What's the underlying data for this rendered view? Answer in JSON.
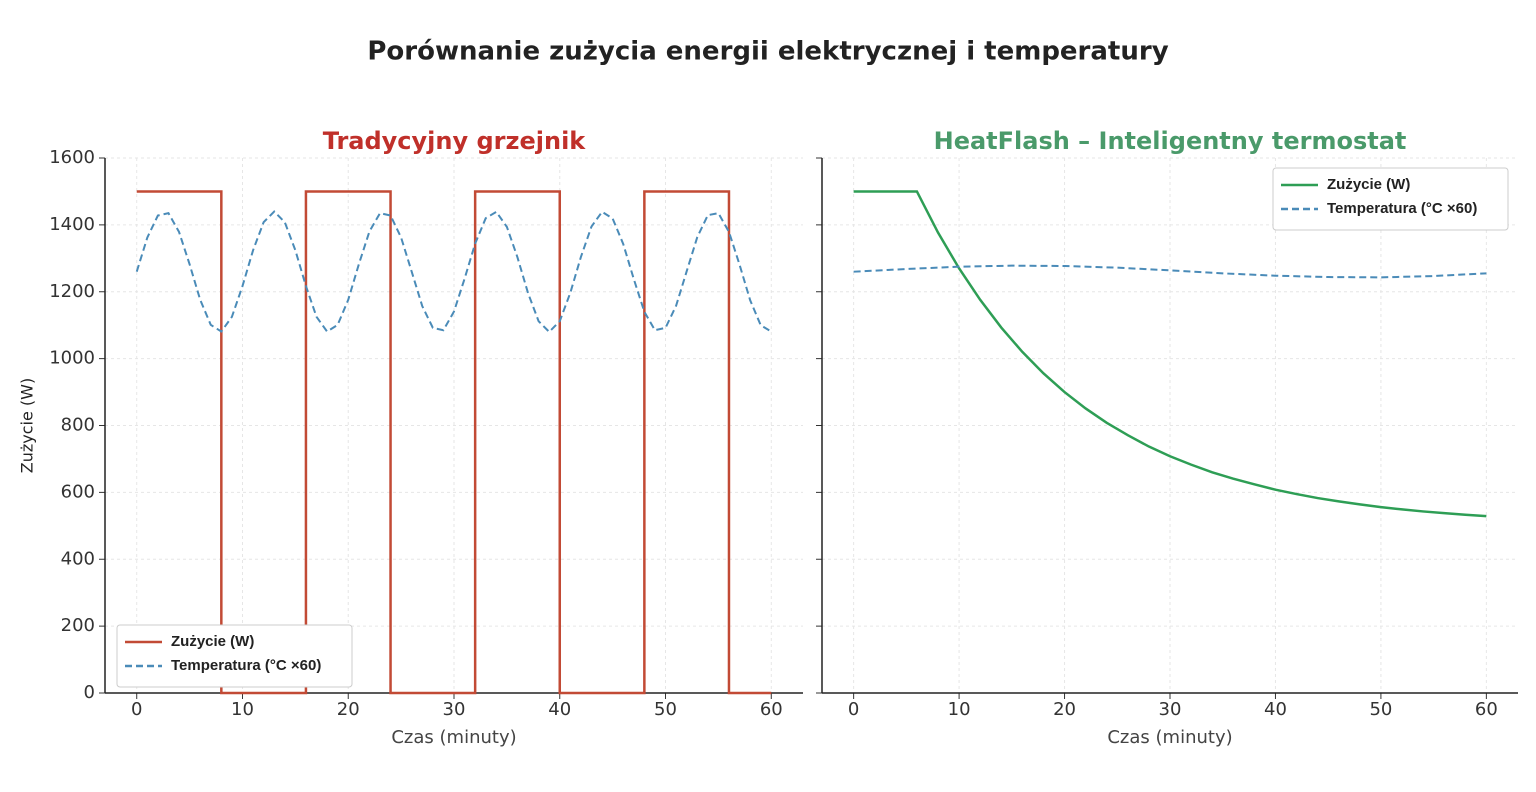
{
  "title": "Porównanie zużycia energii elektrycznej i temperatury",
  "chart_data": [
    {
      "type": "line",
      "title": "Tradycyjny grzejnik",
      "title_color": "#c0302a",
      "xlabel": "Czas (minuty)",
      "ylabel": "Zużycie (W)",
      "xlim": [
        -3,
        63
      ],
      "ylim": [
        0,
        1600
      ],
      "xticks": [
        0,
        10,
        20,
        30,
        40,
        50,
        60
      ],
      "yticks": [
        0,
        200,
        400,
        600,
        800,
        1000,
        1200,
        1400,
        1600
      ],
      "ytick_labels": true,
      "grid": true,
      "legend": "lower left",
      "series": [
        {
          "name": "Zużycie (W)",
          "color": "#c24a35",
          "linestyle": "solid",
          "x": [
            0,
            8,
            8,
            16,
            16,
            24,
            24,
            32,
            32,
            40,
            40,
            48,
            48,
            56,
            56,
            60
          ],
          "values": [
            1500,
            1500,
            0,
            0,
            1500,
            1500,
            0,
            0,
            1500,
            1500,
            0,
            0,
            1500,
            1500,
            0,
            0
          ]
        },
        {
          "name": "Temperatura (°C ×60)",
          "color": "#4a8bb8",
          "linestyle": "dashed",
          "x": [
            0,
            1,
            2,
            3,
            4,
            5,
            6,
            7,
            8,
            9,
            10,
            11,
            12,
            13,
            14,
            15,
            16,
            17,
            18,
            19,
            20,
            21,
            22,
            23,
            24,
            25,
            26,
            27,
            28,
            29,
            30,
            31,
            32,
            33,
            34,
            35,
            36,
            37,
            38,
            39,
            40,
            41,
            42,
            43,
            44,
            45,
            46,
            47,
            48,
            49,
            50,
            51,
            52,
            53,
            54,
            55,
            56,
            57,
            58,
            59,
            60
          ],
          "values": [
            1260,
            1362,
            1428,
            1435,
            1379,
            1282,
            1176,
            1101,
            1081,
            1125,
            1217,
            1324,
            1408,
            1440,
            1408,
            1324,
            1217,
            1125,
            1081,
            1101,
            1176,
            1282,
            1380,
            1435,
            1428,
            1362,
            1260,
            1157,
            1092,
            1085,
            1141,
            1239,
            1344,
            1420,
            1439,
            1394,
            1303,
            1196,
            1112,
            1080,
            1112,
            1197,
            1304,
            1395,
            1439,
            1419,
            1343,
            1238,
            1140,
            1085,
            1092,
            1158,
            1261,
            1363,
            1429,
            1435,
            1379,
            1281,
            1175,
            1100,
            1081
          ]
        }
      ]
    },
    {
      "type": "line",
      "title": "HeatFlash – Inteligentny termostat",
      "title_color": "#4a9a6a",
      "xlabel": "Czas (minuty)",
      "xlim": [
        -3,
        63
      ],
      "ylim": [
        0,
        1600
      ],
      "xticks": [
        0,
        10,
        20,
        30,
        40,
        50,
        60
      ],
      "yticks": [
        0,
        200,
        400,
        600,
        800,
        1000,
        1200,
        1400,
        1600
      ],
      "ytick_labels": false,
      "grid": true,
      "legend": "upper right",
      "series": [
        {
          "name": "Zużycie (W)",
          "color": "#2e9e55",
          "linestyle": "solid",
          "x": [
            0,
            6,
            8,
            10,
            12,
            14,
            16,
            18,
            20,
            22,
            24,
            26,
            28,
            30,
            32,
            34,
            36,
            38,
            40,
            42,
            44,
            46,
            48,
            50,
            52,
            54,
            56,
            58,
            60
          ],
          "values": [
            1500,
            1500,
            1377,
            1270,
            1176,
            1093,
            1020,
            956,
            900,
            851,
            808,
            771,
            737,
            708,
            683,
            660,
            641,
            624,
            608,
            595,
            583,
            573,
            564,
            556,
            549,
            543,
            538,
            533,
            529
          ]
        },
        {
          "name": "Temperatura (°C ×60)",
          "color": "#4a8bb8",
          "linestyle": "dashed",
          "x": [
            0,
            5,
            10,
            15,
            20,
            25,
            30,
            35,
            40,
            45,
            50,
            55,
            60
          ],
          "values": [
            1260,
            1268,
            1275,
            1278,
            1277,
            1272,
            1264,
            1255,
            1248,
            1244,
            1243,
            1247,
            1255
          ]
        }
      ]
    }
  ]
}
